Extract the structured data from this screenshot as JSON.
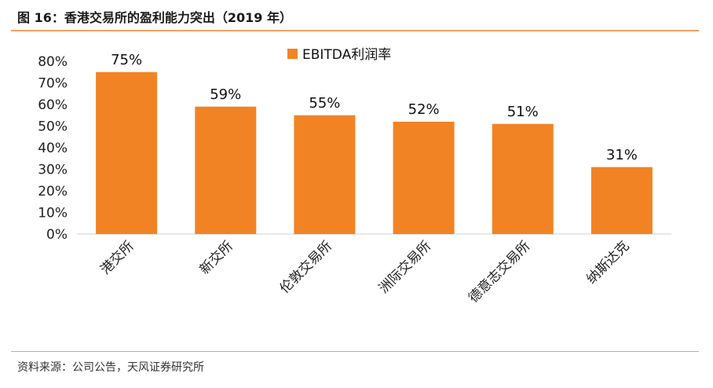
{
  "figure": {
    "title": "图 16：香港交易所的盈利能力突出（2019 年）",
    "source": "资料来源：公司公告，天风证券研究所"
  },
  "chart_data": {
    "type": "bar",
    "categories": [
      "港交所",
      "新交所",
      "伦敦交易所",
      "洲际交易所",
      "德意志交易所",
      "纳斯达克"
    ],
    "series": [
      {
        "name": "EBITDA利润率",
        "values": [
          75,
          59,
          55,
          52,
          51,
          31
        ],
        "color": "#f28324"
      }
    ],
    "data_labels": [
      "75%",
      "59%",
      "55%",
      "52%",
      "51%",
      "31%"
    ],
    "y_ticks": [
      "0%",
      "10%",
      "20%",
      "30%",
      "40%",
      "50%",
      "60%",
      "70%",
      "80%"
    ],
    "ylim": [
      0,
      80
    ],
    "grid": false,
    "legend_position": "top-center"
  }
}
